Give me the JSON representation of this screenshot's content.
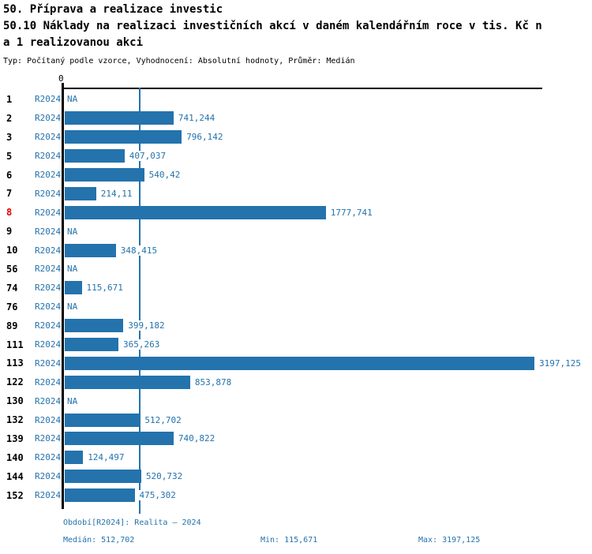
{
  "header": {
    "title_line1": "50. Příprava a realizace investic",
    "title_line2": "50.10 Náklady na realizaci investičních akcí v daném kalendářním roce v tis. Kč n",
    "title_line3": "a 1 realizovanou akci",
    "meta": "Typ: Počítaný podle vzorce, Vyhodnocení: Absolutní hodnoty, Průměr: Medián"
  },
  "chart_data": {
    "type": "bar",
    "orientation": "horizontal",
    "title": "50.10 Náklady na realizaci investičních akcí v daném kalendářním roce v tis. Kč na 1 realizovanou akci",
    "axis_zero_label": "0",
    "period_label": "R2024",
    "categories": [
      "1",
      "2",
      "3",
      "5",
      "6",
      "7",
      "8",
      "9",
      "10",
      "56",
      "74",
      "76",
      "89",
      "111",
      "113",
      "122",
      "130",
      "132",
      "139",
      "140",
      "144",
      "152"
    ],
    "highlighted_category": "8",
    "series": [
      {
        "name": "R2024",
        "values": [
          null,
          741.244,
          796.142,
          407.037,
          540.42,
          214.11,
          1777.741,
          null,
          348.415,
          null,
          115.671,
          null,
          399.182,
          365.263,
          3197.125,
          853.878,
          null,
          512.702,
          740.822,
          124.497,
          520.732,
          475.302
        ]
      }
    ],
    "value_labels": [
      "NA",
      "741,244",
      "796,142",
      "407,037",
      "540,42",
      "214,11",
      "1777,741",
      "NA",
      "348,415",
      "NA",
      "115,671",
      "NA",
      "399,182",
      "365,263",
      "3197,125",
      "853,878",
      "NA",
      "512,702",
      "740,822",
      "124,497",
      "520,732",
      "475,302"
    ],
    "na_label": "NA",
    "xlim": [
      0,
      3197.125
    ],
    "median_value": 512.702,
    "grid": false,
    "bar_color": "#2473ad",
    "highlight_color": "#e60000",
    "axis_color": "#000000"
  },
  "footer": {
    "period_line": "Období[R2024]: Realita – 2024",
    "median": "Medián: 512,702",
    "min": "Min: 115,671",
    "max": "Max: 3197,125"
  }
}
